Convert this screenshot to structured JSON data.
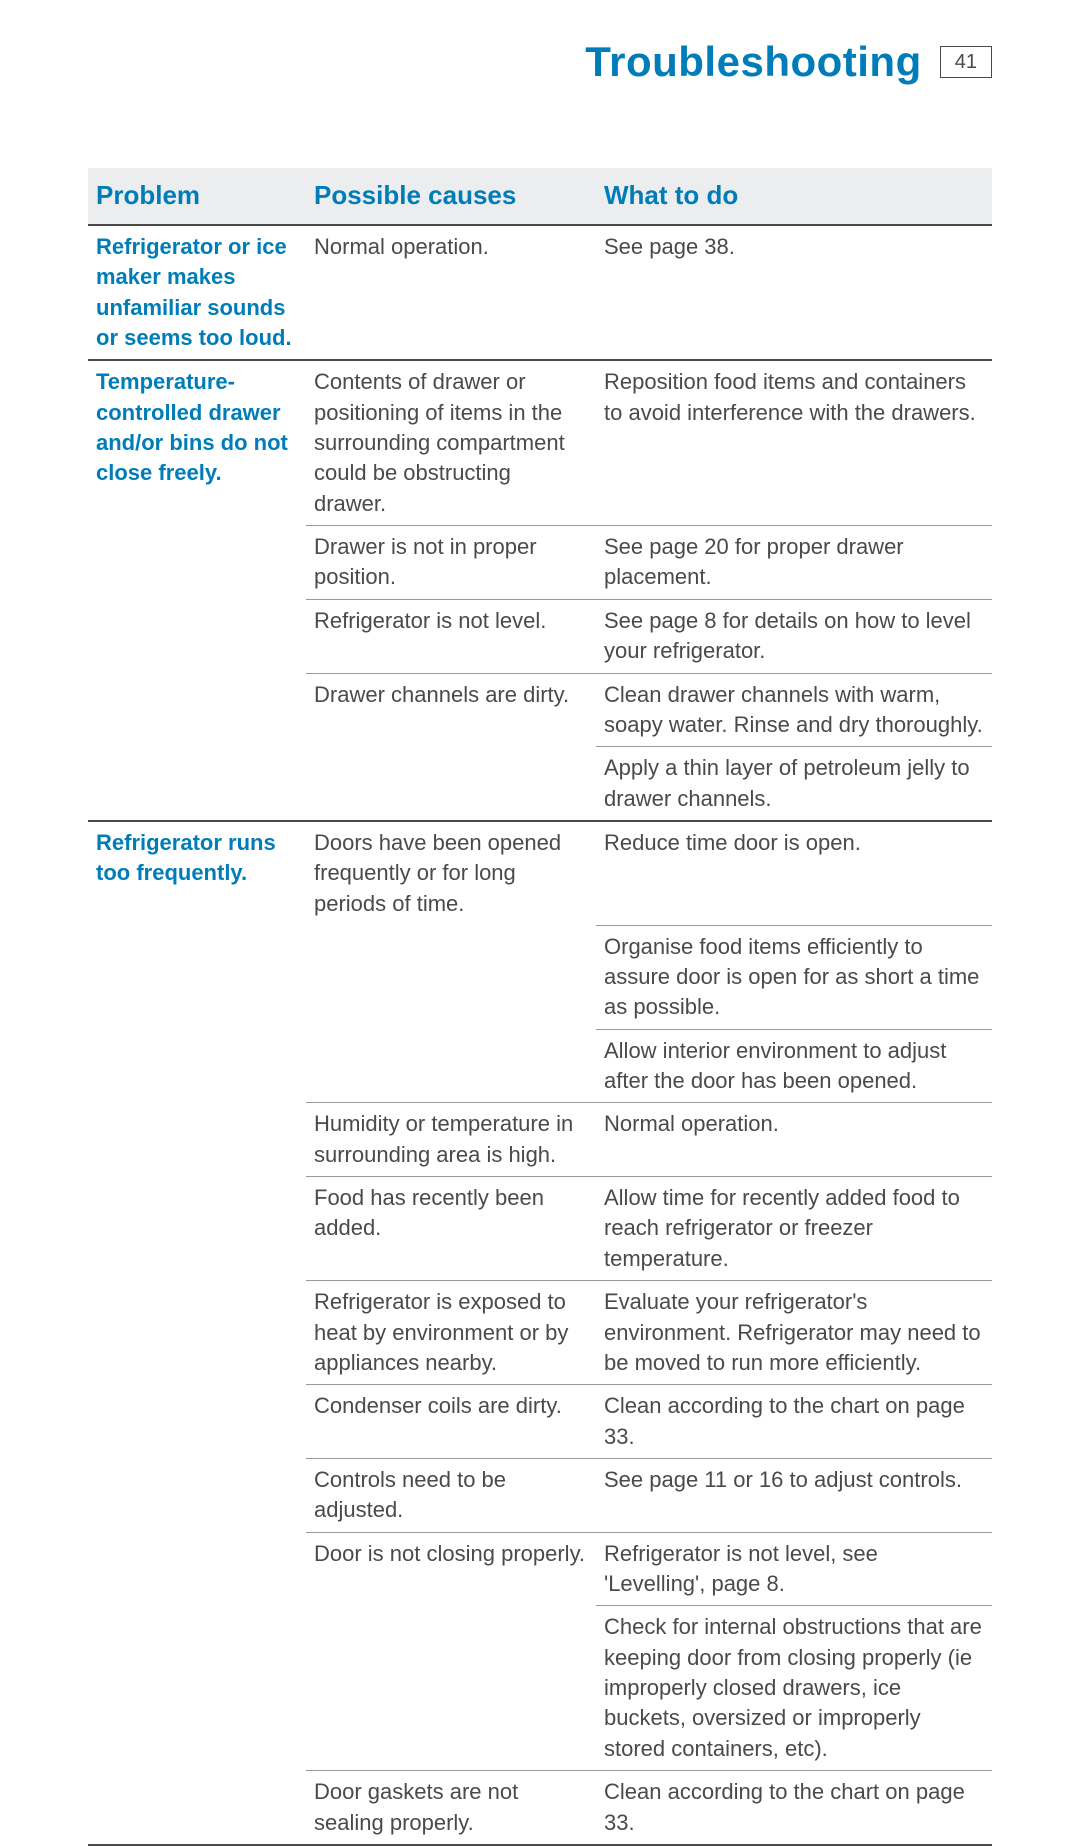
{
  "header": {
    "title": "Troubleshooting",
    "page_number": "41"
  },
  "columns": {
    "c1": "Problem",
    "c2": "Possible causes",
    "c3": "What to do"
  },
  "r1": {
    "problem": "Refrigerator or ice maker makes unfamiliar sounds or seems too loud.",
    "cause": "Normal operation.",
    "action": "See page 38."
  },
  "r2": {
    "problem": "Temperature-controlled drawer and/or bins do not close freely.",
    "a": {
      "cause": "Contents of drawer or positioning of items in the surrounding compartment could be obstructing drawer.",
      "action": "Reposition food items and containers to avoid interference with the drawers."
    },
    "b": {
      "cause": "Drawer is not in proper position.",
      "action": "See page 20 for proper drawer placement."
    },
    "c": {
      "cause": "Refrigerator is not level.",
      "action": "See page 8 for details on how to level your refrigerator."
    },
    "d": {
      "cause": "Drawer channels are dirty.",
      "action1": "Clean drawer channels with warm, soapy water. Rinse and dry thoroughly.",
      "action2": "Apply a thin layer of petroleum jelly to drawer channels."
    }
  },
  "r3": {
    "problem": "Refrigerator runs too frequently.",
    "a": {
      "cause": "Doors have been opened frequently or for long periods of time.",
      "action1": "Reduce time door is open.",
      "action2": "Organise food items efficiently to assure door is open for as short a time as possible.",
      "action3": "Allow interior environment to adjust after the door has been opened."
    },
    "b": {
      "cause": "Humidity or temperature in surrounding area is high.",
      "action": "Normal operation."
    },
    "c": {
      "cause": "Food has recently been added.",
      "action": "Allow time for recently added food to reach refrigerator or freezer temperature."
    },
    "d": {
      "cause": "Refrigerator is exposed to heat by environment or by appliances nearby.",
      "action": "Evaluate your refrigerator's environment. Refrigerator may need to be moved to run more efficiently."
    },
    "e": {
      "cause": "Condenser coils are dirty.",
      "action": "Clean according to the chart on page 33."
    },
    "f": {
      "cause": "Controls need to be adjusted.",
      "action": "See page 11 or 16 to adjust controls."
    },
    "g": {
      "cause": "Door is not closing properly.",
      "action1": "Refrigerator is not level, see 'Levelling', page 8.",
      "action2": "Check for internal obstructions that are keeping door from closing properly (ie improperly closed drawers, ice buckets, oversized or improperly stored containers, etc)."
    },
    "h": {
      "cause": "Door gaskets are not sealing properly.",
      "action": "Clean according to the chart on page 33."
    }
  }
}
